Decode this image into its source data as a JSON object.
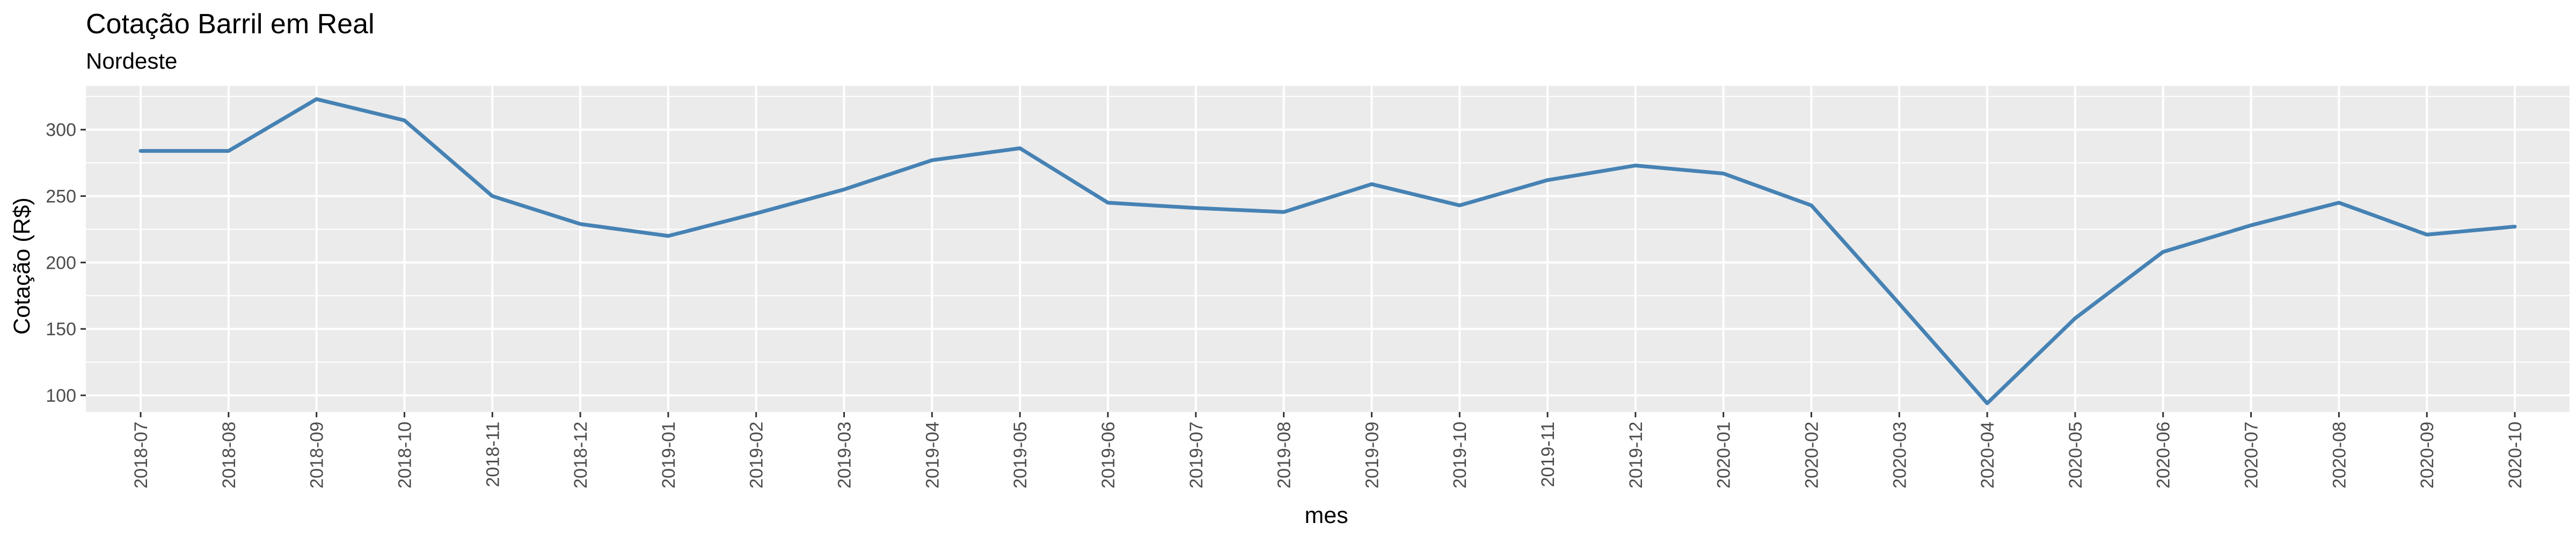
{
  "chart_data": {
    "type": "line",
    "title": "Cotação Barril em Real",
    "subtitle": "Nordeste",
    "xlabel": "mes",
    "ylabel": "Cotação (R$)",
    "categories": [
      "2018-07",
      "2018-08",
      "2018-09",
      "2018-10",
      "2018-11",
      "2018-12",
      "2019-01",
      "2019-02",
      "2019-03",
      "2019-04",
      "2019-05",
      "2019-06",
      "2019-07",
      "2019-08",
      "2019-09",
      "2019-10",
      "2019-11",
      "2019-12",
      "2020-01",
      "2020-02",
      "2020-03",
      "2020-04",
      "2020-05",
      "2020-06",
      "2020-07",
      "2020-08",
      "2020-09",
      "2020-10"
    ],
    "series": [
      {
        "values": [
          284,
          284,
          323,
          307,
          250,
          229,
          220,
          237,
          255,
          277,
          286,
          245,
          241,
          238,
          259,
          243,
          262,
          273,
          267,
          243,
          169,
          94,
          158,
          208,
          228,
          245,
          221,
          227
        ]
      }
    ],
    "yticks": [
      100,
      150,
      200,
      250,
      300
    ],
    "ylim": [
      87.5,
      333
    ],
    "line_color": "#4682B4",
    "panel_color": "#EBEBEB",
    "grid": true,
    "legend": "none"
  }
}
